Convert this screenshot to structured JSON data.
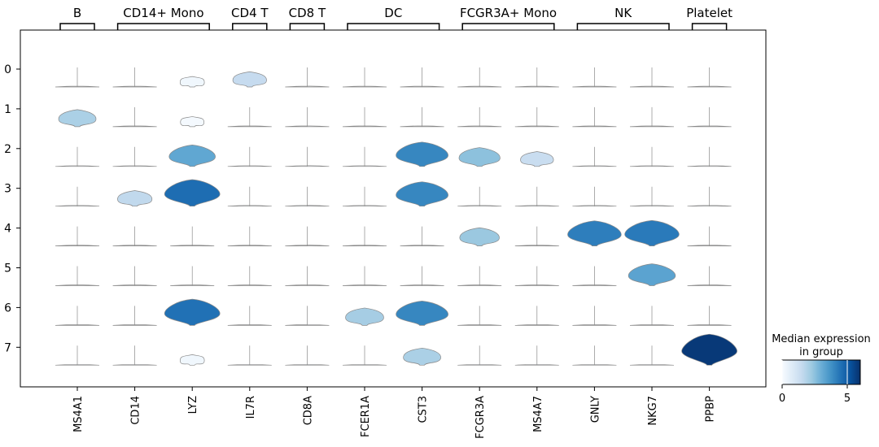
{
  "chart_data": {
    "type": "stacked_violin",
    "groups": [
      {
        "label": "B",
        "genes": [
          "MS4A1"
        ]
      },
      {
        "label": "CD14+ Mono",
        "genes": [
          "CD14",
          "LYZ"
        ]
      },
      {
        "label": "CD4 T",
        "genes": [
          "IL7R"
        ]
      },
      {
        "label": "CD8 T",
        "genes": [
          "CD8A"
        ]
      },
      {
        "label": "DC",
        "genes": [
          "FCER1A",
          "CST3"
        ]
      },
      {
        "label": "FCGR3A+ Mono",
        "genes": [
          "FCGR3A",
          "MS4A7"
        ]
      },
      {
        "label": "NK",
        "genes": [
          "GNLY",
          "NKG7"
        ]
      },
      {
        "label": "Platelet",
        "genes": [
          "PPBP"
        ]
      }
    ],
    "genes": [
      "MS4A1",
      "CD14",
      "LYZ",
      "IL7R",
      "CD8A",
      "FCER1A",
      "CST3",
      "FCGR3A",
      "MS4A7",
      "GNLY",
      "NKG7",
      "PPBP"
    ],
    "clusters": [
      "0",
      "1",
      "2",
      "3",
      "4",
      "5",
      "6",
      "7"
    ],
    "median_expression": [
      [
        0.0,
        0.0,
        0.2,
        1.5,
        0.0,
        0.0,
        0.0,
        0.0,
        0.0,
        0.0,
        0.0,
        0.0
      ],
      [
        2.0,
        0.0,
        0.1,
        0.0,
        0.0,
        0.0,
        0.0,
        0.0,
        0.0,
        0.0,
        0.0,
        0.0
      ],
      [
        0.0,
        0.0,
        3.2,
        0.0,
        0.0,
        0.0,
        4.0,
        2.5,
        1.4,
        0.0,
        0.0,
        0.0
      ],
      [
        0.0,
        1.6,
        4.6,
        0.0,
        0.0,
        0.0,
        4.0,
        0.0,
        0.0,
        0.0,
        0.0,
        0.0
      ],
      [
        0.0,
        0.0,
        0.0,
        0.0,
        0.0,
        0.0,
        0.0,
        2.3,
        0.0,
        4.2,
        4.3,
        0.0
      ],
      [
        0.0,
        0.0,
        0.0,
        0.0,
        0.0,
        0.0,
        0.0,
        0.0,
        0.0,
        0.0,
        3.3,
        0.0
      ],
      [
        0.0,
        0.0,
        4.5,
        0.0,
        0.0,
        2.1,
        4.0,
        0.0,
        0.0,
        0.0,
        0.0,
        0.0
      ],
      [
        0.0,
        0.0,
        0.2,
        0.0,
        0.0,
        0.0,
        2.0,
        0.0,
        0.0,
        0.0,
        0.0,
        5.8
      ]
    ],
    "colorbar": {
      "title_line1": "Median expression",
      "title_line2": "in group",
      "ticks": [
        0,
        5
      ],
      "vmin": 0,
      "vmax": 6,
      "colormap": "Blues",
      "colors": [
        "#f7fbff",
        "#deebf7",
        "#c6dbef",
        "#9ecae1",
        "#6baed6",
        "#4292c6",
        "#2171b5",
        "#08519c",
        "#08306b"
      ]
    },
    "grid": false
  }
}
